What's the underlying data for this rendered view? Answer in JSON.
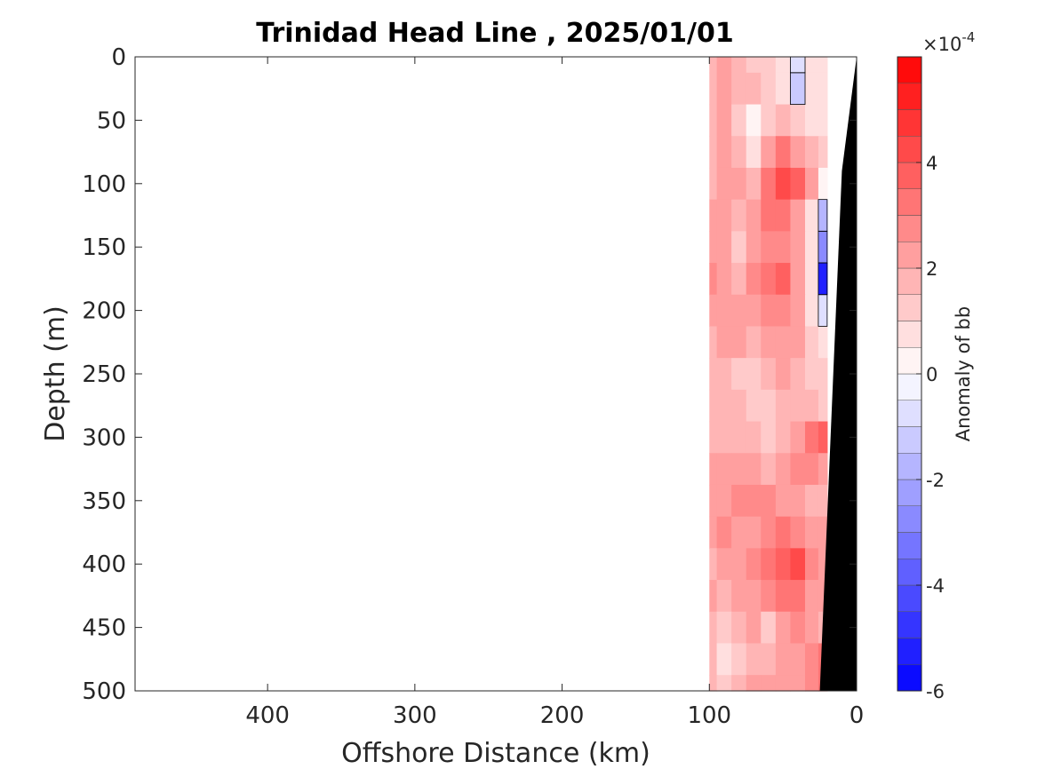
{
  "chart_data": {
    "type": "heatmap",
    "title": "Trinidad Head Line , 2025/01/01",
    "xlabel": "Offshore Distance (km)",
    "ylabel": "Depth (m)",
    "xlim": [
      490,
      0
    ],
    "ylim": [
      500,
      0
    ],
    "x_reversed": true,
    "y_reversed": true,
    "x_ticks": [
      400,
      300,
      200,
      100,
      0
    ],
    "y_ticks": [
      0,
      50,
      100,
      150,
      200,
      250,
      300,
      350,
      400,
      450,
      500
    ],
    "colorbar": {
      "label": "Anomaly of bb",
      "multiplier": "×10",
      "exponent": "-4",
      "range": [
        -6,
        6
      ],
      "step": 0.5,
      "ticks": [
        -6,
        -4,
        -2,
        0,
        2,
        4
      ],
      "negative_color": "#0000ff",
      "positive_color": "#ff0000"
    },
    "data_extent_km": [
      100,
      20
    ],
    "contour_levels_shown": [
      0
    ],
    "field": {
      "x": [
        100,
        90,
        80,
        70,
        60,
        50,
        40,
        30,
        22
      ],
      "depth": [
        0,
        25,
        50,
        75,
        100,
        125,
        150,
        175,
        200,
        225,
        250,
        275,
        300,
        325,
        350,
        375,
        400,
        425,
        450,
        475,
        500
      ],
      "anomaly_e4": [
        [
          1.5,
          2.0,
          1.5,
          1.0,
          1.0,
          0.5,
          -1.0,
          0.5,
          0.5
        ],
        [
          1.5,
          2.0,
          1.5,
          1.5,
          1.0,
          0.5,
          -1.5,
          0.5,
          0.5
        ],
        [
          1.5,
          2.0,
          1.0,
          0.0,
          1.0,
          1.5,
          1.0,
          0.5,
          0.5
        ],
        [
          1.5,
          2.0,
          1.5,
          0.5,
          2.0,
          3.0,
          2.0,
          1.5,
          1.0
        ],
        [
          1.5,
          2.0,
          2.0,
          1.5,
          3.0,
          4.0,
          3.5,
          2.0,
          0.0
        ],
        [
          2.0,
          2.0,
          1.5,
          2.0,
          3.0,
          3.0,
          2.0,
          0.5,
          -2.0
        ],
        [
          2.0,
          2.0,
          1.0,
          2.0,
          2.5,
          2.5,
          2.0,
          0.5,
          -3.0
        ],
        [
          2.5,
          2.0,
          1.5,
          2.5,
          3.0,
          3.5,
          2.0,
          0.5,
          -5.5
        ],
        [
          2.0,
          2.0,
          2.0,
          2.0,
          2.5,
          2.5,
          2.0,
          0.5,
          -1.0
        ],
        [
          1.5,
          2.0,
          2.0,
          1.5,
          2.0,
          2.0,
          2.0,
          1.0,
          0.5
        ],
        [
          1.5,
          1.5,
          1.0,
          1.0,
          1.5,
          2.0,
          1.5,
          1.0,
          1.0
        ],
        [
          1.5,
          1.5,
          1.5,
          1.0,
          1.0,
          1.5,
          1.5,
          1.5,
          1.0
        ],
        [
          1.5,
          1.5,
          1.5,
          1.5,
          1.0,
          1.5,
          2.0,
          3.0,
          3.5
        ],
        [
          2.0,
          2.0,
          2.0,
          2.0,
          1.5,
          2.0,
          2.5,
          2.5,
          2.0
        ],
        [
          2.0,
          2.0,
          2.5,
          2.5,
          2.5,
          2.0,
          2.0,
          1.5,
          1.5
        ],
        [
          2.0,
          2.5,
          2.0,
          2.0,
          2.5,
          3.0,
          2.5,
          2.0,
          2.0
        ],
        [
          1.5,
          2.0,
          2.0,
          2.5,
          3.0,
          3.5,
          4.0,
          2.5,
          2.0
        ],
        [
          2.0,
          1.5,
          2.0,
          2.0,
          2.5,
          3.0,
          3.0,
          2.0,
          2.0
        ],
        [
          1.5,
          1.0,
          1.5,
          2.0,
          1.0,
          2.0,
          2.5,
          2.0,
          1.5
        ],
        [
          1.5,
          0.5,
          1.0,
          1.5,
          1.5,
          2.0,
          2.0,
          2.5,
          3.0
        ],
        [
          1.5,
          1.0,
          1.5,
          2.0,
          2.0,
          2.0,
          2.0,
          2.5,
          3.0
        ]
      ]
    },
    "seafloor_color": "#000000",
    "seafloor_km_at_depth": {
      "depth": [
        0,
        90,
        500
      ],
      "km": [
        0,
        10,
        25
      ]
    }
  }
}
